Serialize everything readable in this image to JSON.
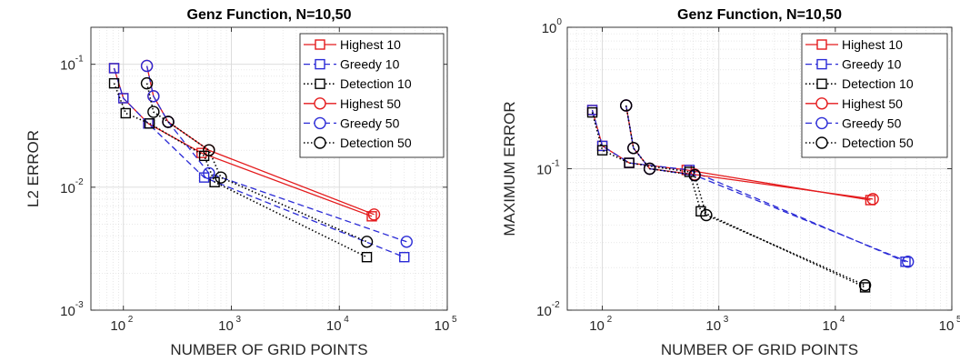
{
  "colors": {
    "red": "#e41a1c",
    "blue": "#2b2bd6",
    "black": "#000000",
    "grid": "#d9d9d9",
    "axis": "#262626"
  },
  "chart_data": [
    {
      "type": "line",
      "title": "Genz Function, N=10,50",
      "xlabel": "NUMBER OF GRID POINTS",
      "ylabel": "L2 ERROR",
      "xscale": "log",
      "yscale": "log",
      "xlim": [
        50,
        100000
      ],
      "ylim": [
        0.001,
        0.2
      ],
      "xticks": [
        {
          "v": 100,
          "b": "10",
          "e": "2"
        },
        {
          "v": 1000,
          "b": "10",
          "e": "3"
        },
        {
          "v": 10000,
          "b": "10",
          "e": "4"
        },
        {
          "v": 100000,
          "b": "10",
          "e": "5"
        }
      ],
      "yticks": [
        {
          "v": 0.001,
          "b": "10",
          "e": "-3"
        },
        {
          "v": 0.01,
          "b": "10",
          "e": "-2"
        },
        {
          "v": 0.1,
          "b": "10",
          "e": "-1"
        }
      ],
      "grid": true,
      "legend_position": "top-right",
      "series": [
        {
          "name": "Highest 10",
          "color": "red",
          "dash": "solid",
          "marker": "square",
          "x": [
            82,
            100,
            170,
            530,
            20000
          ],
          "y": [
            0.093,
            0.053,
            0.033,
            0.019,
            0.0058
          ]
        },
        {
          "name": "Greedy 10",
          "color": "blue",
          "dash": "dashed",
          "marker": "square",
          "x": [
            82,
            100,
            170,
            560,
            40000
          ],
          "y": [
            0.093,
            0.053,
            0.033,
            0.012,
            0.0027
          ]
        },
        {
          "name": "Detection 10",
          "color": "black",
          "dash": "dotted",
          "marker": "square",
          "x": [
            82,
            105,
            175,
            560,
            700,
            18000
          ],
          "y": [
            0.07,
            0.04,
            0.033,
            0.018,
            0.011,
            0.0027
          ]
        },
        {
          "name": "Highest 50",
          "color": "red",
          "dash": "solid",
          "marker": "circle",
          "x": [
            165,
            190,
            260,
            620,
            21000
          ],
          "y": [
            0.097,
            0.055,
            0.034,
            0.02,
            0.006
          ]
        },
        {
          "name": "Greedy 50",
          "color": "blue",
          "dash": "dashed",
          "marker": "circle",
          "x": [
            165,
            190,
            260,
            620,
            42000
          ],
          "y": [
            0.097,
            0.055,
            0.034,
            0.013,
            0.0036
          ]
        },
        {
          "name": "Detection 50",
          "color": "black",
          "dash": "dotted",
          "marker": "circle",
          "x": [
            165,
            190,
            260,
            620,
            800,
            18000
          ],
          "y": [
            0.07,
            0.041,
            0.034,
            0.02,
            0.012,
            0.0036
          ]
        }
      ]
    },
    {
      "type": "line",
      "title": "Genz Function, N=10,50",
      "xlabel": "NUMBER OF GRID POINTS",
      "ylabel": "MAXIMUM ERROR",
      "xscale": "log",
      "yscale": "log",
      "xlim": [
        50,
        100000
      ],
      "ylim": [
        0.01,
        1
      ],
      "xticks": [
        {
          "v": 100,
          "b": "10",
          "e": "2"
        },
        {
          "v": 1000,
          "b": "10",
          "e": "3"
        },
        {
          "v": 10000,
          "b": "10",
          "e": "4"
        },
        {
          "v": 100000,
          "b": "10",
          "e": "5"
        }
      ],
      "yticks": [
        {
          "v": 0.01,
          "b": "10",
          "e": "-2"
        },
        {
          "v": 0.1,
          "b": "10",
          "e": "-1"
        },
        {
          "v": 1,
          "b": "10",
          "e": "0"
        }
      ],
      "grid": true,
      "legend_position": "top-right",
      "series": [
        {
          "name": "Highest 10",
          "color": "red",
          "dash": "solid",
          "marker": "square",
          "x": [
            82,
            100,
            170,
            530,
            20000
          ],
          "y": [
            0.26,
            0.145,
            0.11,
            0.098,
            0.06
          ]
        },
        {
          "name": "Greedy 10",
          "color": "blue",
          "dash": "dashed",
          "marker": "square",
          "x": [
            82,
            100,
            170,
            560,
            40000
          ],
          "y": [
            0.26,
            0.145,
            0.11,
            0.098,
            0.022
          ]
        },
        {
          "name": "Detection 10",
          "color": "black",
          "dash": "dotted",
          "marker": "square",
          "x": [
            82,
            100,
            170,
            560,
            700,
            18000
          ],
          "y": [
            0.25,
            0.135,
            0.11,
            0.095,
            0.05,
            0.0145
          ]
        },
        {
          "name": "Highest 50",
          "color": "red",
          "dash": "solid",
          "marker": "circle",
          "x": [
            160,
            185,
            255,
            620,
            21000
          ],
          "y": [
            0.28,
            0.14,
            0.1,
            0.091,
            0.061
          ]
        },
        {
          "name": "Greedy 50",
          "color": "blue",
          "dash": "dashed",
          "marker": "circle",
          "x": [
            160,
            185,
            255,
            620,
            42000
          ],
          "y": [
            0.28,
            0.14,
            0.1,
            0.09,
            0.022
          ]
        },
        {
          "name": "Detection 50",
          "color": "black",
          "dash": "dotted",
          "marker": "circle",
          "x": [
            160,
            185,
            255,
            620,
            780,
            18000
          ],
          "y": [
            0.28,
            0.14,
            0.1,
            0.09,
            0.047,
            0.015
          ]
        }
      ]
    }
  ]
}
